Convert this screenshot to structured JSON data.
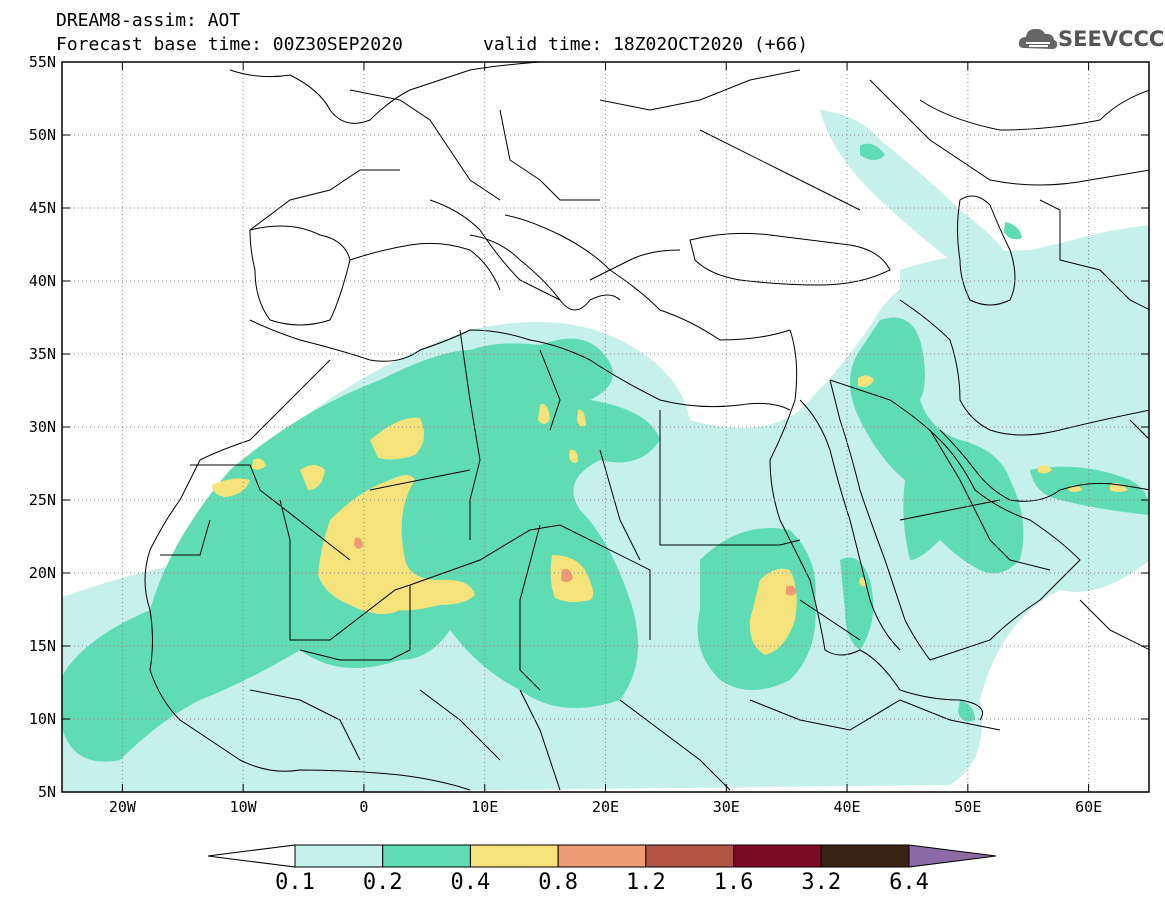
{
  "header": {
    "line1": "DREAM8-assim: AOT",
    "line2": "Forecast base time: 00Z30SEP2020",
    "valid": "valid time: 18Z02OCT2020 (+66)",
    "logo": "SEEVCCC"
  },
  "map": {
    "lon_range": [
      -25,
      65
    ],
    "lat_range": [
      5,
      55
    ],
    "lat_labels": [
      "55N",
      "50N",
      "45N",
      "40N",
      "35N",
      "30N",
      "25N",
      "20N",
      "15N",
      "10N",
      "5N"
    ],
    "lat_values": [
      55,
      50,
      45,
      40,
      35,
      30,
      25,
      20,
      15,
      10,
      5
    ],
    "lon_labels": [
      "20W",
      "10W",
      "0",
      "10E",
      "20E",
      "30E",
      "40E",
      "50E",
      "60E"
    ],
    "lon_values": [
      -20,
      -10,
      0,
      10,
      20,
      30,
      40,
      50,
      60
    ]
  },
  "colorbar": {
    "labels": [
      "0.1",
      "0.2",
      "0.4",
      "0.8",
      "1.2",
      "1.6",
      "3.2",
      "6.4"
    ],
    "colors": [
      "#ffffff",
      "#c6f0ea",
      "#5fdcb4",
      "#f5e27a",
      "#ec9a72",
      "#b35542",
      "#7a0a25",
      "#3a2416",
      "#8c6aa6"
    ]
  },
  "levels": {
    "aot_0_1": "#c6f0ea",
    "aot_0_2": "#5fdcb4",
    "aot_0_4": "#f5e27a",
    "aot_0_8": "#ec9a72"
  }
}
